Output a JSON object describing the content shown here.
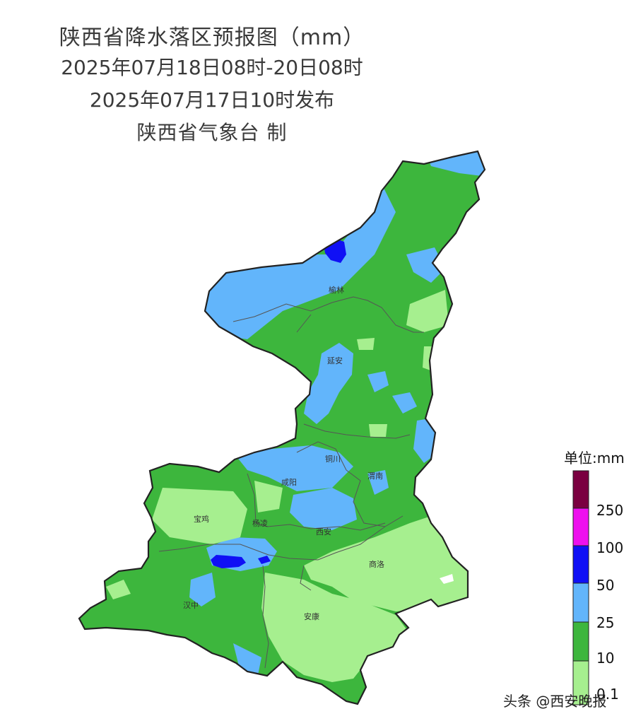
{
  "header": {
    "title": "陕西省降水落区预报图（mm）",
    "period": "2025年07月18日08时-20日08时",
    "issued": "2025年07月17日10时发布",
    "producer": "陕西省气象台 制"
  },
  "cities": {
    "yulin": "榆林",
    "yanan": "延安",
    "tongchuan": "铜川",
    "weinan": "渭南",
    "xianyang": "咸阳",
    "baoji": "宝鸡",
    "yangling": "杨凌",
    "xian": "西安",
    "shangluo": "商洛",
    "hanzhong": "汉中",
    "ankang": "安康"
  },
  "legend": {
    "unit": "单位:mm",
    "labels": [
      "250",
      "100",
      "50",
      "25",
      "10",
      "0.1"
    ],
    "colors": {
      "above_250": "#7a0040",
      "100_250": "#ee10ee",
      "50_100": "#1010f5",
      "25_50": "#62b5fb",
      "10_25": "#3db63d",
      "0.1_10": "#a6ef8f"
    }
  },
  "watermark": "头条 @西安晚报"
}
